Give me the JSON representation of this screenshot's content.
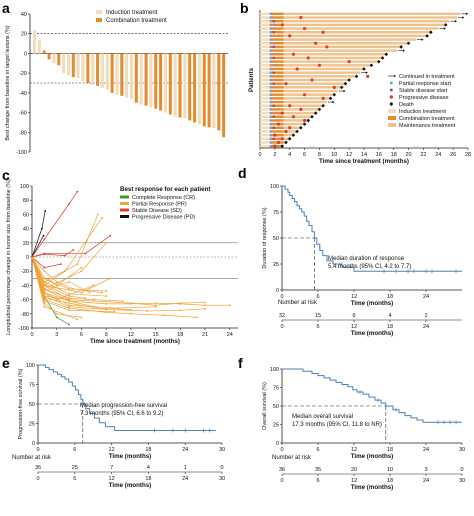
{
  "colors": {
    "induction": "#f1dcbc",
    "combination": "#e68a2e",
    "maintenance": "#f0c38e",
    "km": "#4a82b6",
    "cr": "#3a9a3a",
    "pr": "#f2a33a",
    "sd": "#e23b2a",
    "pd": "#111111",
    "prmark": "#7a9acd",
    "sdmark": "#8a4a8a"
  },
  "chart_data": [
    {
      "panel": "a",
      "type": "bar",
      "ylabel": "Best change from baseline in target lesions (%)",
      "ylim": [
        -100,
        40
      ],
      "yticks": [
        40,
        20,
        0,
        -20,
        -40,
        -60,
        -80,
        -100
      ],
      "ytick_labels": [
        "40",
        "20",
        "0",
        "-20",
        "-40",
        "-60",
        "-80",
        "-100"
      ],
      "reference_lines": [
        20,
        -30
      ],
      "legend": [
        "Induction treatment",
        "Combination treatment"
      ],
      "values": [
        24,
        14,
        3,
        -6,
        -10,
        -12,
        -20,
        -22,
        -24,
        -25,
        -28,
        -30,
        -32,
        -33,
        -35,
        -37,
        -40,
        -42,
        -43,
        -45,
        -46,
        -50,
        -52,
        -53,
        -55,
        -56,
        -58,
        -60,
        -62,
        -64,
        -65,
        -66,
        -68,
        -70,
        -72,
        -74,
        -75,
        -76,
        -78,
        -85
      ],
      "groups": [
        "I",
        "I",
        "C",
        "C",
        "I",
        "C",
        "I",
        "I",
        "C",
        "I",
        "I",
        "C",
        "I",
        "C",
        "I",
        "I",
        "C",
        "I",
        "C",
        "I",
        "I",
        "C",
        "I",
        "C",
        "I",
        "C",
        "C",
        "I",
        "C",
        "I",
        "C",
        "I",
        "C",
        "C",
        "I",
        "C",
        "C",
        "I",
        "C",
        "C"
      ]
    },
    {
      "panel": "b",
      "type": "swimmer",
      "xlabel": "Time since treatment (months)",
      "ylabel": "Patients",
      "xlim": [
        0,
        28
      ],
      "xticks": [
        0,
        2,
        4,
        6,
        8,
        10,
        12,
        14,
        16,
        18,
        20,
        22,
        24,
        26,
        28
      ],
      "legend": [
        "Continued in treatment",
        "Partial response start",
        "Stable disease start",
        "Progressive disease",
        "Death",
        "Induction treatment",
        "Combination treatment",
        "Maintenance treatment"
      ],
      "durations": [
        27,
        26.5,
        25.5,
        25,
        24,
        23,
        22.5,
        21,
        20,
        19,
        18.5,
        17,
        16.5,
        16,
        15,
        14,
        13.5,
        13,
        12,
        11.5,
        11,
        10.5,
        10,
        9.5,
        9,
        8.5,
        8,
        7.5,
        7,
        6.5,
        6,
        5.5,
        5,
        4.5,
        4,
        3.5,
        3
      ],
      "continued": [
        true,
        true,
        true,
        false,
        true,
        false,
        false,
        true,
        false,
        false,
        true,
        false,
        false,
        false,
        false,
        false,
        true,
        false,
        false,
        false,
        false,
        true,
        false,
        false,
        true,
        false,
        false,
        false,
        false,
        false,
        false,
        false,
        false,
        false,
        false,
        false,
        false
      ],
      "pd_time": [
        null,
        5.5,
        null,
        3.0,
        6.0,
        8.5,
        4.0,
        null,
        7.5,
        9.0,
        null,
        4.5,
        6.5,
        12.0,
        8.0,
        5.0,
        null,
        14.5,
        7.0,
        3.5,
        10.0,
        null,
        6.0,
        8.5,
        null,
        4.0,
        5.5,
        3.0,
        4.5,
        6.0,
        2.5,
        4.0,
        3.5,
        2.0,
        3.0,
        2.5,
        2.0
      ],
      "death_time": [
        null,
        null,
        null,
        25.0,
        null,
        23.0,
        22.5,
        null,
        20.0,
        19.0,
        null,
        17.0,
        16.5,
        16.0,
        15.0,
        14.0,
        null,
        13.0,
        12.0,
        11.5,
        11.0,
        null,
        10.0,
        9.5,
        null,
        8.5,
        8.0,
        7.5,
        7.0,
        6.5,
        6.0,
        5.5,
        5.0,
        4.5,
        4.0,
        3.5,
        3.0
      ],
      "pr_time": [
        1.5,
        1.5,
        1.5,
        2.0,
        1.5,
        1.5,
        1.5,
        1.5,
        2.0,
        1.5,
        1.5,
        1.5,
        1.5,
        1.5,
        2.0,
        1.5,
        1.5,
        1.5,
        1.5,
        1.5,
        1.5,
        1.5,
        1.5,
        1.5,
        1.5,
        1.5,
        1.5,
        1.5,
        1.5,
        1.5,
        1.5,
        1.5,
        1.5,
        1.5,
        1.5,
        1.5,
        1.5
      ],
      "sd_time": [
        null,
        null,
        1.5,
        null,
        null,
        1.5,
        null,
        null,
        null,
        1.5,
        null,
        null,
        1.5,
        null,
        null,
        null,
        1.5,
        null,
        null,
        1.5,
        null,
        null,
        null,
        null,
        null,
        1.5,
        null,
        null,
        1.5,
        null,
        null,
        1.5,
        null,
        null,
        1.5,
        null,
        null
      ]
    },
    {
      "panel": "c",
      "type": "line",
      "title": "Best response for each patient",
      "xlabel": "Time since treatment (months)",
      "ylabel": "Longitudinal percentage change in tumor size from baseline (%)",
      "xlim": [
        0,
        25
      ],
      "xticks": [
        0,
        3,
        6,
        9,
        12,
        15,
        18,
        21,
        24
      ],
      "ylim": [
        -100,
        100
      ],
      "yticks": [
        100,
        80,
        60,
        40,
        20,
        0,
        -20,
        -40,
        -60,
        -80,
        -100
      ],
      "reference_lines": [
        20,
        0,
        -30
      ],
      "legend": [
        "Complete Response (CR)",
        "Partial Response (PR)",
        "Stable Disease (SD)",
        "Progressive Disease (PD)"
      ],
      "series": [
        {
          "group": "pd",
          "x": [
            0,
            1.2,
            1.6
          ],
          "y": [
            0,
            40,
            65
          ]
        },
        {
          "group": "pd",
          "x": [
            0,
            1.4
          ],
          "y": [
            0,
            30
          ]
        },
        {
          "group": "sd",
          "x": [
            0,
            1.5,
            4.5,
            5.5
          ],
          "y": [
            0,
            25,
            75,
            92
          ]
        },
        {
          "group": "sd",
          "x": [
            0,
            1.5,
            6.5,
            9.5
          ],
          "y": [
            0,
            5,
            5,
            30
          ]
        },
        {
          "group": "sd",
          "x": [
            0,
            1.5,
            3.5
          ],
          "y": [
            0,
            -15,
            -10
          ]
        },
        {
          "group": "sd",
          "x": [
            0,
            1.5,
            4.0,
            5.0
          ],
          "y": [
            0,
            4,
            2,
            10
          ]
        },
        {
          "group": "cr",
          "x": [
            0,
            1.5,
            3,
            4.5
          ],
          "y": [
            0,
            -55,
            -85,
            -95
          ]
        },
        {
          "group": "pr",
          "x": [
            0,
            1.5,
            4,
            8.5
          ],
          "y": [
            0,
            -40,
            -20,
            55
          ]
        },
        {
          "group": "pr",
          "x": [
            0,
            1.5,
            5.5,
            8.0
          ],
          "y": [
            0,
            -35,
            -10,
            60
          ]
        },
        {
          "group": "pr",
          "x": [
            0,
            1.5,
            6.0,
            9.0
          ],
          "y": [
            0,
            -45,
            -20,
            20
          ]
        },
        {
          "group": "pr",
          "x": [
            0,
            1.5,
            3.0,
            6.0
          ],
          "y": [
            0,
            -30,
            -40,
            -15
          ]
        },
        {
          "group": "pr",
          "x": [
            0,
            1.5,
            4.5,
            12,
            15,
            18,
            21
          ],
          "y": [
            0,
            -40,
            -60,
            -65,
            -68,
            -65,
            -64
          ]
        },
        {
          "group": "pr",
          "x": [
            0,
            1.5,
            4.5,
            9,
            12,
            15,
            18,
            21,
            24
          ],
          "y": [
            0,
            -50,
            -62,
            -66,
            -66,
            -65,
            -66,
            -68,
            -68
          ]
        },
        {
          "group": "pr",
          "x": [
            0,
            1.5,
            4.5,
            9,
            14,
            18,
            21
          ],
          "y": [
            0,
            -55,
            -70,
            -74,
            -76,
            -75,
            -73
          ]
        },
        {
          "group": "pr",
          "x": [
            0,
            1.5,
            4.5,
            7.5,
            11
          ],
          "y": [
            0,
            -45,
            -58,
            -60,
            -62
          ]
        },
        {
          "group": "pr",
          "x": [
            0,
            1.5,
            4.5,
            9,
            12,
            16,
            20
          ],
          "y": [
            0,
            -60,
            -72,
            -78,
            -80,
            -82,
            -85
          ]
        },
        {
          "group": "pr",
          "x": [
            0,
            1.5,
            4.5,
            9
          ],
          "y": [
            0,
            -35,
            -52,
            -55
          ]
        },
        {
          "group": "pr",
          "x": [
            0,
            1.5,
            4.5,
            7.5,
            10.5,
            15
          ],
          "y": [
            0,
            -45,
            -62,
            -70,
            -72,
            -70
          ]
        },
        {
          "group": "pr",
          "x": [
            0,
            1.5,
            4.5,
            7.5
          ],
          "y": [
            0,
            -50,
            -68,
            -70
          ]
        },
        {
          "group": "pr",
          "x": [
            0,
            1.5,
            3.0,
            6.0
          ],
          "y": [
            0,
            -65,
            -80,
            -85
          ]
        },
        {
          "group": "pr",
          "x": [
            0,
            1.5,
            4.5,
            9
          ],
          "y": [
            0,
            -30,
            -45,
            -48
          ]
        },
        {
          "group": "pr",
          "x": [
            0,
            1.5,
            6,
            9.5
          ],
          "y": [
            0,
            -40,
            -50,
            -30
          ]
        },
        {
          "group": "pr",
          "x": [
            0,
            1.5,
            3.0,
            7.5
          ],
          "y": [
            0,
            -52,
            -60,
            -40
          ]
        },
        {
          "group": "pr",
          "x": [
            0,
            1.5,
            4.5,
            6.5
          ],
          "y": [
            0,
            -38,
            -55,
            -58
          ]
        },
        {
          "group": "pr",
          "x": [
            0,
            1.5,
            4.5,
            8,
            12
          ],
          "y": [
            0,
            -58,
            -65,
            -72,
            -74
          ]
        },
        {
          "group": "pr",
          "x": [
            0,
            1.5,
            5.5
          ],
          "y": [
            0,
            -70,
            -88
          ]
        },
        {
          "group": "pr",
          "x": [
            0,
            1.5,
            4.5,
            7
          ],
          "y": [
            0,
            -48,
            -35,
            -50
          ]
        },
        {
          "group": "pr",
          "x": [
            0,
            1.5,
            4.5,
            10
          ],
          "y": [
            0,
            -62,
            -75,
            -77
          ]
        },
        {
          "group": "pr",
          "x": [
            0,
            1.5,
            3.0,
            5.0,
            8.5
          ],
          "y": [
            0,
            -20,
            -35,
            -45,
            -50
          ]
        },
        {
          "group": "pr",
          "x": [
            0,
            1.5,
            4.5
          ],
          "y": [
            0,
            -55,
            -60
          ]
        }
      ]
    },
    {
      "panel": "d",
      "type": "line",
      "xlabel": "Time (months)",
      "ylabel": "Duration of response (%)",
      "xlim": [
        0,
        30
      ],
      "xticks": [
        0,
        6,
        12,
        18,
        24
      ],
      "ylim": [
        0,
        100
      ],
      "yticks": [
        100,
        75,
        50,
        25,
        0
      ],
      "annotation": [
        "Median duration of response",
        "5.4 months (95% CI, 4.2 to 7.7)"
      ],
      "median": 5.4,
      "steps": {
        "x": [
          0,
          0.5,
          1.0,
          1.3,
          1.7,
          2.1,
          2.5,
          2.9,
          3.3,
          3.7,
          4.1,
          4.5,
          5.0,
          5.4,
          5.8,
          6.3,
          6.8,
          7.5,
          8.5,
          10,
          12,
          30
        ],
        "y": [
          100,
          97,
          94,
          91,
          88,
          85,
          81,
          78,
          75,
          71,
          66,
          62,
          56,
          50,
          44,
          38,
          33,
          28,
          25,
          22,
          18,
          18
        ]
      },
      "censor_x": [
        17,
        19,
        21,
        22,
        24,
        25,
        29
      ],
      "risk_title": "Number at risk",
      "risk_values": [
        "32",
        "15",
        "6",
        "4",
        "1"
      ]
    },
    {
      "panel": "e",
      "type": "line",
      "xlabel": "Time (months)",
      "ylabel": "Progression-free survival (%)",
      "xlim": [
        0,
        30
      ],
      "xticks": [
        0,
        6,
        12,
        18,
        24,
        30
      ],
      "ylim": [
        0,
        100
      ],
      "yticks": [
        100,
        75,
        50,
        25,
        0
      ],
      "annotation": [
        "Median progression-free survival",
        "7.3 months (95% CI, 6.6 to 9.2)"
      ],
      "median": 7.3,
      "steps": {
        "x": [
          0,
          1.2,
          1.8,
          2.5,
          3.2,
          3.8,
          4.4,
          5.0,
          5.6,
          6.1,
          6.6,
          7.0,
          7.3,
          7.8,
          8.4,
          9.2,
          10.0,
          11.0,
          12.5,
          29
        ],
        "y": [
          100,
          97,
          94,
          91,
          88,
          85,
          82,
          78,
          73,
          68,
          62,
          56,
          50,
          44,
          38,
          32,
          26,
          21,
          16,
          16
        ]
      },
      "censor_x": [
        19,
        22,
        24,
        27,
        28
      ],
      "risk_title": "Number at risk",
      "risk_values": [
        "36",
        "25",
        "7",
        "4",
        "1",
        "0"
      ]
    },
    {
      "panel": "f",
      "type": "line",
      "xlabel": "Time (months)",
      "ylabel": "Overall survival (%)",
      "xlim": [
        0,
        30
      ],
      "xticks": [
        0,
        6,
        12,
        18,
        24,
        30
      ],
      "ylim": [
        0,
        100
      ],
      "yticks": [
        100,
        75,
        50,
        25,
        0
      ],
      "annotation": [
        "Median overall survival",
        "17.3 months (95% CI, 11.8 to NR)"
      ],
      "median": 17.3,
      "steps": {
        "x": [
          0,
          3.5,
          5.0,
          6.0,
          7.0,
          8.0,
          9.0,
          10.0,
          11.0,
          11.8,
          12.5,
          13.5,
          14.5,
          15.5,
          16.5,
          17.3,
          18.5,
          19.5,
          20.5,
          21.5,
          22.5,
          23.5,
          30
        ],
        "y": [
          100,
          97,
          94,
          91,
          88,
          85,
          82,
          79,
          76,
          72,
          69,
          66,
          62,
          58,
          54,
          50,
          45,
          41,
          37,
          34,
          31,
          28,
          28
        ]
      },
      "censor_x": [
        13,
        16,
        19,
        26,
        27,
        28,
        29
      ],
      "risk_title": "Number at risk",
      "risk_values": [
        "36",
        "35",
        "20",
        "10",
        "3",
        "0"
      ]
    }
  ]
}
